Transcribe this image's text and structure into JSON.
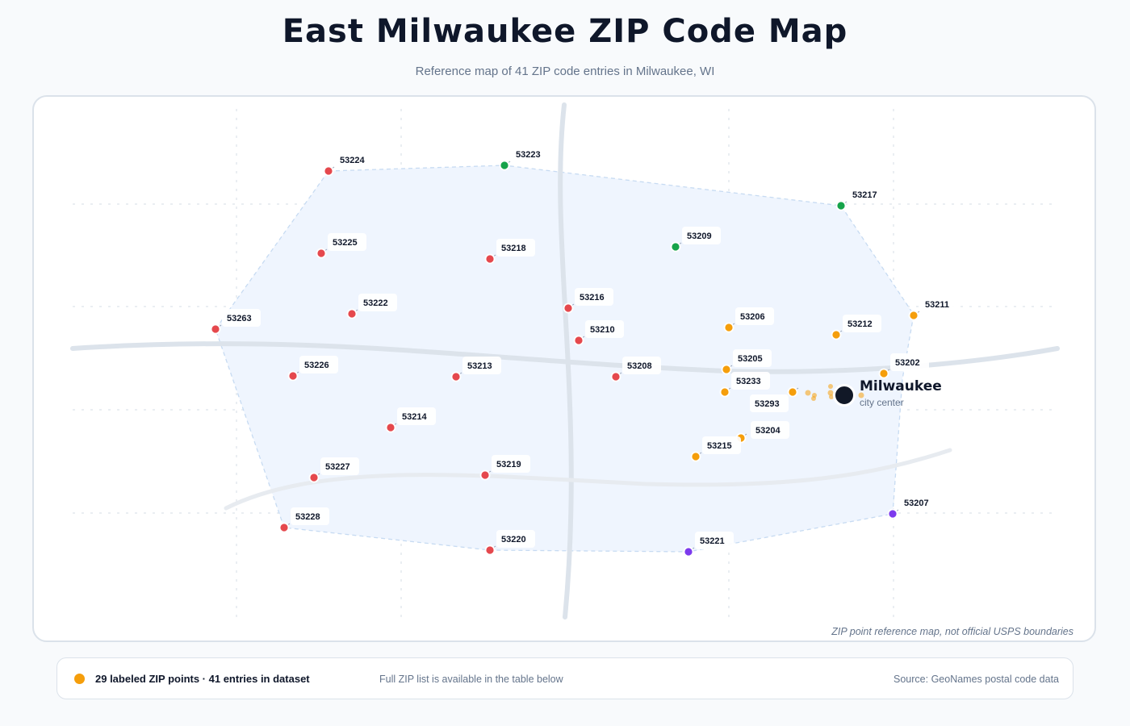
{
  "header": {
    "title": "East Milwaukee ZIP Code Map",
    "subtitle": "Reference map of 41 ZIP code entries in Milwaukee, WI"
  },
  "map": {
    "disclaimer": "ZIP point reference map, not official USPS boundaries",
    "city": {
      "name": "Milwaukee",
      "sublabel": "city center"
    },
    "colors": {
      "red": "#e5484d",
      "green": "#16a34a",
      "orange": "#f59e0b",
      "purple": "#7c3aed",
      "city": "#111827"
    },
    "zips": [
      {
        "code": "53224",
        "color": "red"
      },
      {
        "code": "53223",
        "color": "green"
      },
      {
        "code": "53217",
        "color": "green"
      },
      {
        "code": "53225",
        "color": "red"
      },
      {
        "code": "53218",
        "color": "red"
      },
      {
        "code": "53209",
        "color": "green"
      },
      {
        "code": "53263",
        "color": "red"
      },
      {
        "code": "53222",
        "color": "red"
      },
      {
        "code": "53216",
        "color": "red"
      },
      {
        "code": "53206",
        "color": "orange"
      },
      {
        "code": "53211",
        "color": "orange"
      },
      {
        "code": "53212",
        "color": "orange"
      },
      {
        "code": "53210",
        "color": "red"
      },
      {
        "code": "53226",
        "color": "red"
      },
      {
        "code": "53213",
        "color": "red"
      },
      {
        "code": "53208",
        "color": "red"
      },
      {
        "code": "53205",
        "color": "orange"
      },
      {
        "code": "53202",
        "color": "orange"
      },
      {
        "code": "53233",
        "color": "orange"
      },
      {
        "code": "53293",
        "color": "orange"
      },
      {
        "code": "53214",
        "color": "red"
      },
      {
        "code": "53204",
        "color": "orange"
      },
      {
        "code": "53215",
        "color": "orange"
      },
      {
        "code": "53227",
        "color": "red"
      },
      {
        "code": "53219",
        "color": "red"
      },
      {
        "code": "53207",
        "color": "purple"
      },
      {
        "code": "53228",
        "color": "red"
      },
      {
        "code": "53220",
        "color": "red"
      },
      {
        "code": "53221",
        "color": "purple"
      }
    ]
  },
  "footer": {
    "legend_label": "29 labeled ZIP points · 41 entries in dataset",
    "note": "Full ZIP list is available in the table below",
    "source": "Source: GeoNames postal code data"
  }
}
